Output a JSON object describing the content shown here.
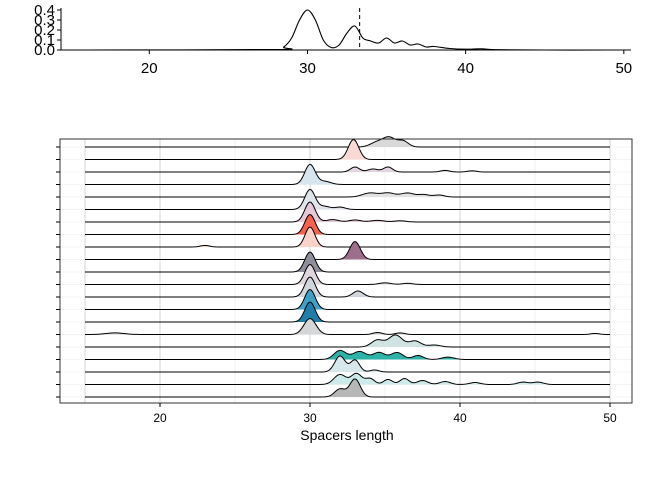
{
  "chart_data": [
    {
      "type": "line",
      "title": "",
      "xlabel": "",
      "ylabel": "",
      "xlim": [
        15,
        50
      ],
      "ylim": [
        0,
        0.4
      ],
      "x_ticks": [
        "20",
        "30",
        "40",
        "50"
      ],
      "y_ticks": [
        "0.0",
        "0.1",
        "0.2",
        "0.3",
        "0.4"
      ],
      "vline_x": 33.3,
      "grid": false,
      "series": [
        {
          "name": "",
          "x": [
            16,
            28,
            28.5,
            29,
            29.5,
            30,
            30.5,
            31,
            31.5,
            32,
            32.5,
            33,
            33.5,
            34,
            34.5,
            35,
            35.5,
            36,
            36.5,
            37,
            37.5,
            38,
            39,
            40,
            41,
            42,
            45,
            49
          ],
          "y": [
            0.0,
            0.005,
            0.03,
            0.12,
            0.3,
            0.4,
            0.3,
            0.1,
            0.025,
            0.05,
            0.17,
            0.24,
            0.12,
            0.09,
            0.07,
            0.12,
            0.07,
            0.09,
            0.05,
            0.06,
            0.03,
            0.035,
            0.015,
            0.008,
            0.012,
            0.003,
            0.0,
            0.0
          ]
        }
      ]
    },
    {
      "type": "area",
      "subtype": "ridgeline",
      "title": "",
      "xlabel": "Spacers length",
      "ylabel": "",
      "xlim": [
        15,
        50
      ],
      "x_ticks": [
        "20",
        "30",
        "40",
        "50"
      ],
      "grid": true,
      "series": [
        {
          "name": "",
          "color": "#d9d9d9",
          "peaks": [
            [
              34.5,
              0.25,
              0.45
            ],
            [
              35.3,
              0.45,
              0.4
            ],
            [
              36.2,
              0.3,
              0.35
            ]
          ],
          "range": [
            15,
            50
          ]
        },
        {
          "name": "",
          "color": "#f9d9d4",
          "peaks": [
            [
              32.9,
              1.0,
              0.35
            ]
          ],
          "range": [
            15,
            50
          ]
        },
        {
          "name": "",
          "color": "#e4d4e2",
          "peaks": [
            [
              33.0,
              0.25,
              0.3
            ],
            [
              34.2,
              0.15,
              0.35
            ],
            [
              35.2,
              0.25,
              0.3
            ],
            [
              39.0,
              0.08,
              0.3
            ],
            [
              40.8,
              0.06,
              0.3
            ]
          ],
          "range": [
            15,
            50
          ]
        },
        {
          "name": "",
          "color": "#d7e6ee",
          "peaks": [
            [
              30.0,
              1.0,
              0.35
            ],
            [
              31.0,
              0.15,
              0.4
            ]
          ],
          "range": [
            15,
            50
          ]
        },
        {
          "name": "",
          "color": "#e2e2e2",
          "peaks": [
            [
              34.0,
              0.2,
              0.5
            ],
            [
              35.2,
              0.2,
              0.45
            ],
            [
              36.5,
              0.2,
              0.45
            ],
            [
              37.6,
              0.12,
              0.35
            ],
            [
              38.6,
              0.1,
              0.35
            ]
          ],
          "range": [
            15,
            50
          ]
        },
        {
          "name": "",
          "color": "#dfe3ea",
          "peaks": [
            [
              30.0,
              1.0,
              0.35
            ],
            [
              31.0,
              0.15,
              0.35
            ],
            [
              32.0,
              0.12,
              0.35
            ]
          ],
          "range": [
            15,
            50
          ]
        },
        {
          "name": "",
          "color": "#e6c9d9",
          "peaks": [
            [
              30.0,
              1.0,
              0.35
            ],
            [
              31.5,
              0.12,
              0.4
            ],
            [
              33.0,
              0.1,
              0.4
            ],
            [
              34.5,
              0.08,
              0.45
            ],
            [
              36.0,
              0.06,
              0.4
            ]
          ],
          "range": [
            15,
            50
          ]
        },
        {
          "name": "",
          "color": "#f4624d",
          "peaks": [
            [
              30.0,
              1.0,
              0.35
            ]
          ],
          "range": [
            15,
            50
          ]
        },
        {
          "name": "",
          "color": "#fbd2c9",
          "peaks": [
            [
              30.0,
              1.0,
              0.33
            ],
            [
              23.0,
              0.08,
              0.3
            ]
          ],
          "range": [
            15,
            50
          ]
        },
        {
          "name": "",
          "color": "#9e6f8d",
          "peaks": [
            [
              33.0,
              0.9,
              0.35
            ]
          ],
          "range": [
            15,
            50
          ]
        },
        {
          "name": "",
          "color": "#8f8f9b",
          "peaks": [
            [
              30.0,
              1.0,
              0.35
            ]
          ],
          "range": [
            15,
            50
          ]
        },
        {
          "name": "",
          "color": "#e0d6de",
          "peaks": [
            [
              30.0,
              1.0,
              0.35
            ],
            [
              35.0,
              0.08,
              0.4
            ],
            [
              36.5,
              0.06,
              0.35
            ]
          ],
          "range": [
            15,
            50
          ]
        },
        {
          "name": "",
          "color": "#d1d5dc",
          "peaks": [
            [
              30.0,
              1.0,
              0.35
            ],
            [
              33.2,
              0.3,
              0.35
            ]
          ],
          "range": [
            15,
            50
          ]
        },
        {
          "name": "",
          "color": "#3fa0c7",
          "peaks": [
            [
              30.0,
              1.0,
              0.35
            ]
          ],
          "range": [
            15,
            50
          ]
        },
        {
          "name": "",
          "color": "#1d7fa9",
          "peaks": [
            [
              30.0,
              1.0,
              0.35
            ]
          ],
          "range": [
            15,
            50
          ]
        },
        {
          "name": "",
          "color": "#d5d6d8",
          "peaks": [
            [
              30.0,
              0.8,
              0.4
            ],
            [
              17.0,
              0.08,
              0.6
            ],
            [
              34.5,
              0.1,
              0.3
            ],
            [
              36.0,
              0.08,
              0.3
            ],
            [
              49.0,
              0.05,
              0.3
            ]
          ],
          "range": [
            15,
            50
          ]
        },
        {
          "name": "",
          "color": "#cfe3e3",
          "peaks": [
            [
              34.5,
              0.35,
              0.4
            ],
            [
              35.7,
              0.6,
              0.45
            ],
            [
              37.0,
              0.3,
              0.4
            ],
            [
              38.3,
              0.1,
              0.4
            ]
          ],
          "range": [
            15,
            50
          ]
        },
        {
          "name": "",
          "color": "#2fb3a9",
          "peaks": [
            [
              32.0,
              0.45,
              0.4
            ],
            [
              33.3,
              0.4,
              0.45
            ],
            [
              34.6,
              0.35,
              0.4
            ],
            [
              35.8,
              0.35,
              0.4
            ],
            [
              37.2,
              0.2,
              0.35
            ],
            [
              39.2,
              0.12,
              0.4
            ]
          ],
          "range": [
            15,
            50
          ]
        },
        {
          "name": "",
          "color": "#d6e8ec",
          "peaks": [
            [
              32.0,
              0.8,
              0.35
            ],
            [
              33.0,
              0.6,
              0.3
            ],
            [
              34.3,
              0.1,
              0.3
            ]
          ],
          "range": [
            15,
            50
          ]
        },
        {
          "name": "",
          "color": "#cdeaea",
          "peaks": [
            [
              32.0,
              0.5,
              0.4
            ],
            [
              33.1,
              0.55,
              0.35
            ],
            [
              34.0,
              0.3,
              0.3
            ],
            [
              35.2,
              0.25,
              0.3
            ],
            [
              36.3,
              0.3,
              0.3
            ],
            [
              37.5,
              0.2,
              0.35
            ],
            [
              39.0,
              0.15,
              0.35
            ],
            [
              41.0,
              0.1,
              0.35
            ],
            [
              44.2,
              0.12,
              0.35
            ],
            [
              45.2,
              0.12,
              0.35
            ]
          ],
          "range": [
            15,
            50
          ]
        },
        {
          "name": "",
          "color": "#b7b7b7",
          "peaks": [
            [
              32.0,
              0.4,
              0.35
            ],
            [
              33.0,
              0.9,
              0.35
            ]
          ],
          "range": [
            15,
            50
          ]
        }
      ]
    }
  ]
}
